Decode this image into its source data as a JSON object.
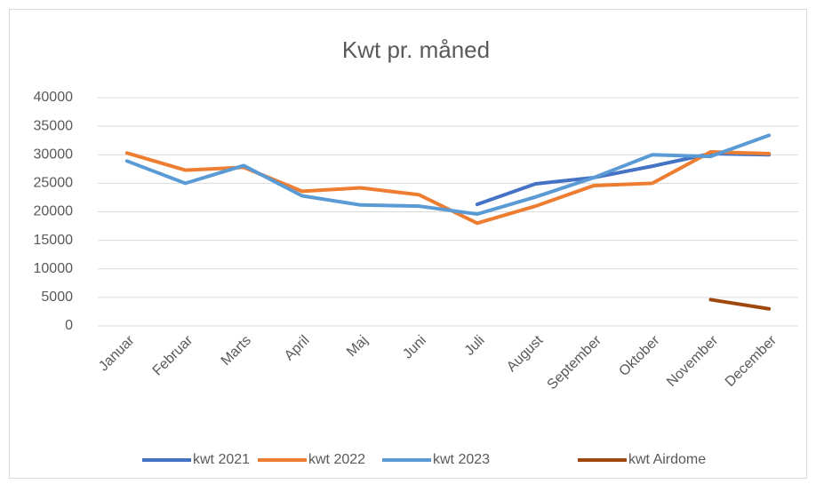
{
  "chart_data": {
    "type": "line",
    "title": "Kwt pr. måned",
    "categories": [
      "Januar",
      "Februar",
      "Marts",
      "April",
      "Maj",
      "Juni",
      "Juli",
      "August",
      "September",
      "Oktober",
      "November",
      "December"
    ],
    "series": [
      {
        "name": "kwt 2021",
        "color": "#4472c4",
        "values": [
          null,
          null,
          null,
          null,
          null,
          null,
          21300,
          24900,
          26000,
          28000,
          30200,
          30000
        ]
      },
      {
        "name": "kwt 2022",
        "color": "#ed7d31",
        "values": [
          30300,
          27300,
          27800,
          23600,
          24200,
          23000,
          18000,
          21000,
          24600,
          25000,
          30500,
          30200
        ]
      },
      {
        "name": "kwt 2023",
        "color": "#5b9bd5",
        "values": [
          28900,
          25000,
          28100,
          22800,
          21200,
          21000,
          19600,
          22600,
          26000,
          30000,
          29700,
          33400
        ]
      },
      {
        "name": "kwt Airdome",
        "color": "#9e480e",
        "values": [
          null,
          null,
          null,
          null,
          null,
          null,
          null,
          null,
          null,
          null,
          4600,
          3000
        ]
      }
    ],
    "ylim": [
      0,
      40000
    ],
    "yticks": [
      0,
      5000,
      10000,
      15000,
      20000,
      25000,
      30000,
      35000,
      40000
    ],
    "grid": true,
    "legend": "bottom"
  }
}
